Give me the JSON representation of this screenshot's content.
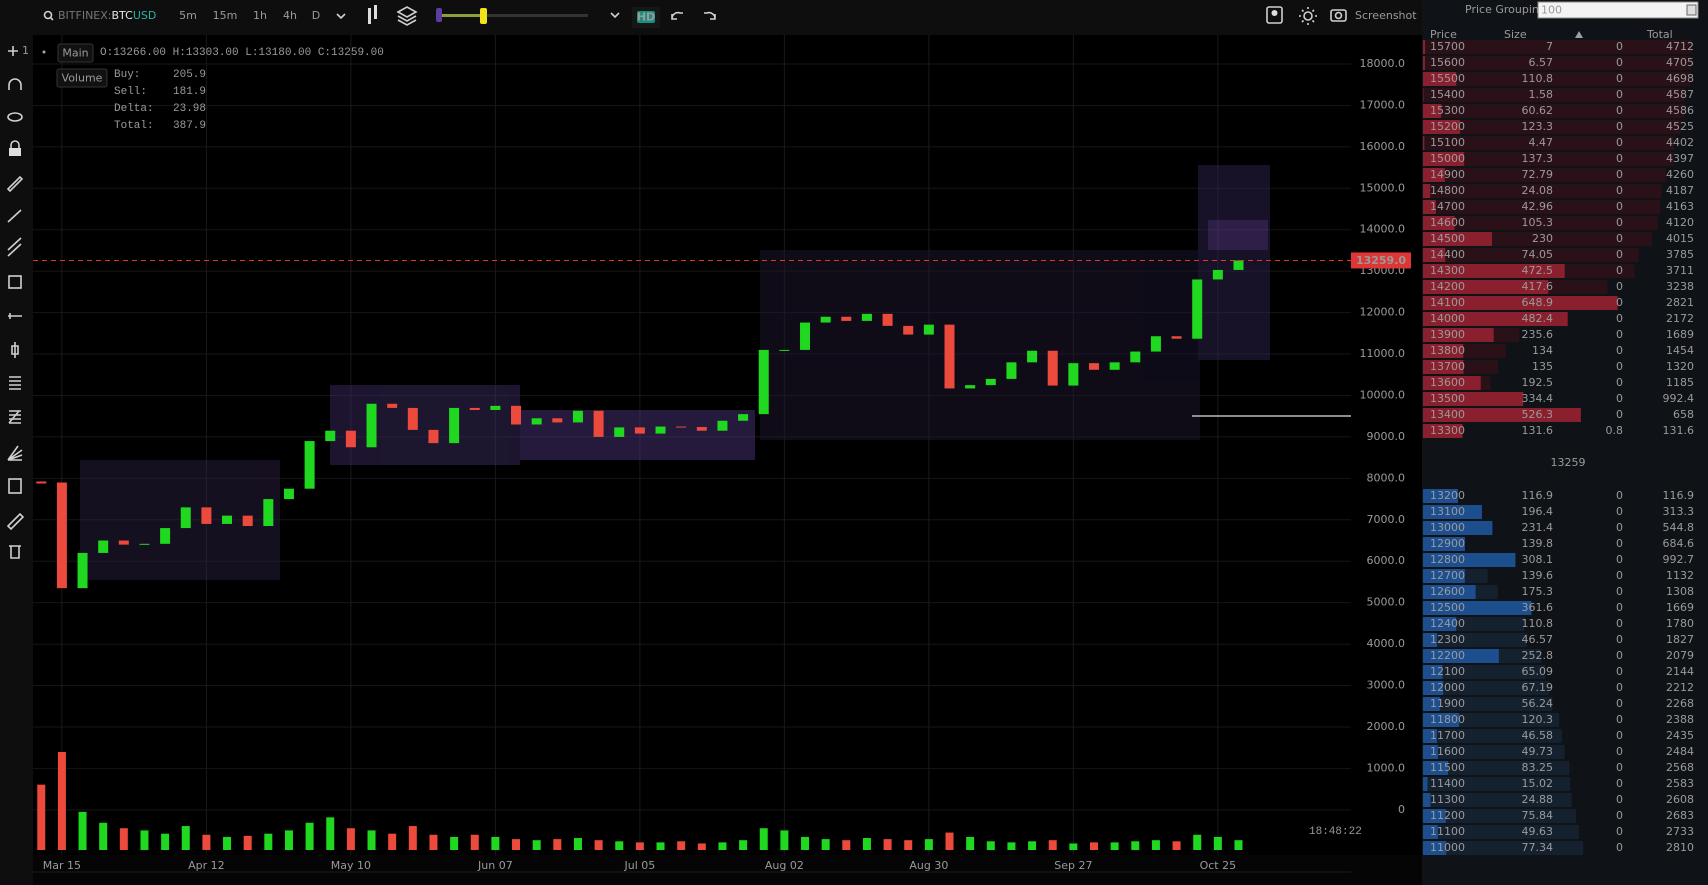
{
  "toolbar": {
    "exchange": "BITFINEX:",
    "base": "BTC",
    "quote": "USD",
    "timeframes": [
      "5m",
      "15m",
      "1h",
      "4h",
      "D"
    ],
    "hd": "HD",
    "screenshot": "Screenshot"
  },
  "tools": {
    "zoom_count": "1"
  },
  "legend": {
    "ohlc": "O:13266.00 H:13303.00 L:13180.00 C:13259.00",
    "main": "Main",
    "volume": "Volume",
    "stats": [
      {
        "label": "Buy:",
        "value": 205.9
      },
      {
        "label": "Sell:",
        "value": 181.9
      },
      {
        "label": "Delta:",
        "value": 23.98
      },
      {
        "label": "Total:",
        "value": 387.9
      }
    ]
  },
  "clock": "18:48:22",
  "chart_data": {
    "type": "candlestick",
    "values": [
      7900,
      5350,
      6200,
      6500,
      6400,
      6420,
      6800,
      7300,
      6900,
      7100,
      6850,
      7500,
      7750,
      8900,
      9150,
      8750,
      9800,
      9700,
      9170,
      8850,
      9700,
      9650,
      9750,
      9300,
      9450,
      9350,
      9630,
      9000,
      9230,
      9080,
      9250,
      9240,
      9150,
      9390,
      9550,
      11100,
      11100,
      11760,
      11900,
      11800,
      11970,
      11680,
      11470,
      11710,
      10170,
      10250,
      10400,
      10800,
      11080,
      10240,
      10780,
      10620,
      10800,
      11060,
      11430,
      11370,
      12800,
      13030,
      13259
    ],
    "volume": [
      60,
      90,
      35,
      25,
      20,
      18,
      15,
      22,
      14,
      12,
      13,
      15,
      18,
      25,
      30,
      20,
      18,
      15,
      22,
      14,
      12,
      14,
      12,
      10,
      9,
      10,
      11,
      9,
      8,
      7,
      7,
      8,
      6,
      7,
      9,
      20,
      18,
      12,
      10,
      9,
      11,
      10,
      9,
      10,
      16,
      12,
      8,
      7,
      8,
      9,
      6,
      7,
      7,
      8,
      9,
      8,
      14,
      12,
      9
    ],
    "up_color": "#1fd81f",
    "down_color": "#ec4a3c",
    "last_price_label": "13259.0",
    "xlim": [
      -0.4,
      63.45
    ],
    "xticks": [
      {
        "value": 1,
        "label": "Mar 15"
      },
      {
        "value": 8,
        "label": "Apr 12"
      },
      {
        "value": 15,
        "label": "May 10"
      },
      {
        "value": 22,
        "label": "Jun 07"
      },
      {
        "value": 29,
        "label": "Jul 05"
      },
      {
        "value": 36,
        "label": "Aug 02"
      },
      {
        "value": 43,
        "label": "Aug 30"
      },
      {
        "value": 50,
        "label": "Sep 27"
      },
      {
        "value": 57,
        "label": "Oct 25"
      }
    ],
    "ylim": [
      -1090,
      18700
    ],
    "yticks": [
      0,
      {
        "value": 1000,
        "label": "1000.0"
      },
      {
        "value": 2000,
        "label": "2000.0"
      },
      {
        "value": 3000,
        "label": "3000.0"
      },
      {
        "value": 4000,
        "label": "4000.0"
      },
      {
        "value": 5000,
        "label": "5000.0"
      },
      {
        "value": 6000,
        "label": "6000.0"
      },
      {
        "value": 7000,
        "label": "7000.0"
      },
      {
        "value": 8000,
        "label": "8000.0"
      },
      {
        "value": 9000,
        "label": "9000.0"
      },
      {
        "value": 10000,
        "label": "10000.0"
      },
      {
        "value": 11000,
        "label": "11000.0"
      },
      {
        "value": 12000,
        "label": "12000.0"
      },
      {
        "value": 13000,
        "label": "13000.0"
      },
      {
        "value": 14000,
        "label": "14000.0"
      },
      {
        "value": 15000,
        "label": "15000.0"
      },
      {
        "value": 16000,
        "label": "16000.0"
      },
      {
        "value": 17000,
        "label": "17000.0"
      },
      {
        "value": 18000,
        "label": "18000.0"
      }
    ],
    "grid": true
  },
  "order_book": {
    "grouping_label": "Price Grouping",
    "grouping": "100",
    "columns": [
      "Price",
      "Size",
      "Total"
    ],
    "asks": [
      [
        15700,
        7,
        0,
        4712
      ],
      [
        15600,
        6.57,
        0,
        4705
      ],
      [
        15500,
        110.8,
        0,
        4698
      ],
      [
        15400,
        1.58,
        0,
        4587
      ],
      [
        15300,
        60.62,
        0,
        4586
      ],
      [
        15200,
        123.3,
        0,
        4525
      ],
      [
        15100,
        4.47,
        0,
        4402
      ],
      [
        15000,
        137.3,
        0,
        4397
      ],
      [
        14900,
        72.79,
        0,
        4260
      ],
      [
        14800,
        24.08,
        0,
        4187
      ],
      [
        14700,
        42.96,
        0,
        4163
      ],
      [
        14600,
        105.3,
        0,
        4120
      ],
      [
        14500,
        230,
        0,
        4015
      ],
      [
        14400,
        74.05,
        0,
        3785
      ],
      [
        14300,
        472.5,
        0,
        3711
      ],
      [
        14200,
        417.6,
        0,
        3238
      ],
      [
        14100,
        648.9,
        0,
        2821
      ],
      [
        14000,
        482.4,
        0,
        2172
      ],
      [
        13900,
        235.6,
        0,
        1689
      ],
      [
        13800,
        134,
        0,
        1454
      ],
      [
        13700,
        135,
        0,
        1320
      ],
      [
        13600,
        192.5,
        0,
        1185
      ],
      [
        13500,
        334.4,
        0,
        992.4
      ],
      [
        13400,
        526.3,
        0,
        658
      ],
      [
        13300,
        131.6,
        0.8,
        131.6
      ]
    ],
    "mid": 13259,
    "bids": [
      [
        13200,
        116.9,
        0,
        116.9
      ],
      [
        13100,
        196.4,
        0,
        313.3
      ],
      [
        13000,
        231.4,
        0,
        544.8
      ],
      [
        12900,
        139.8,
        0,
        684.6
      ],
      [
        12800,
        308.1,
        0,
        992.7
      ],
      [
        12700,
        139.6,
        0,
        1132
      ],
      [
        12600,
        175.3,
        0,
        1308
      ],
      [
        12500,
        361.6,
        0,
        1669
      ],
      [
        12400,
        110.8,
        0,
        1780
      ],
      [
        12300,
        46.57,
        0,
        1827
      ],
      [
        12200,
        252.8,
        0,
        2079
      ],
      [
        12100,
        65.09,
        0,
        2144
      ],
      [
        12000,
        67.19,
        0,
        2212
      ],
      [
        11900,
        56.24,
        0,
        2268
      ],
      [
        11800,
        120.3,
        0,
        2388
      ],
      [
        11700,
        46.58,
        0,
        2435
      ],
      [
        11600,
        49.73,
        0,
        2484
      ],
      [
        11500,
        83.25,
        0,
        2568
      ],
      [
        11400,
        15.02,
        0,
        2583
      ],
      [
        11300,
        24.88,
        0,
        2608
      ],
      [
        11200,
        75.84,
        0,
        2683
      ],
      [
        11100,
        49.63,
        0,
        2733
      ],
      [
        11000,
        77.34,
        0,
        2810
      ]
    ]
  }
}
